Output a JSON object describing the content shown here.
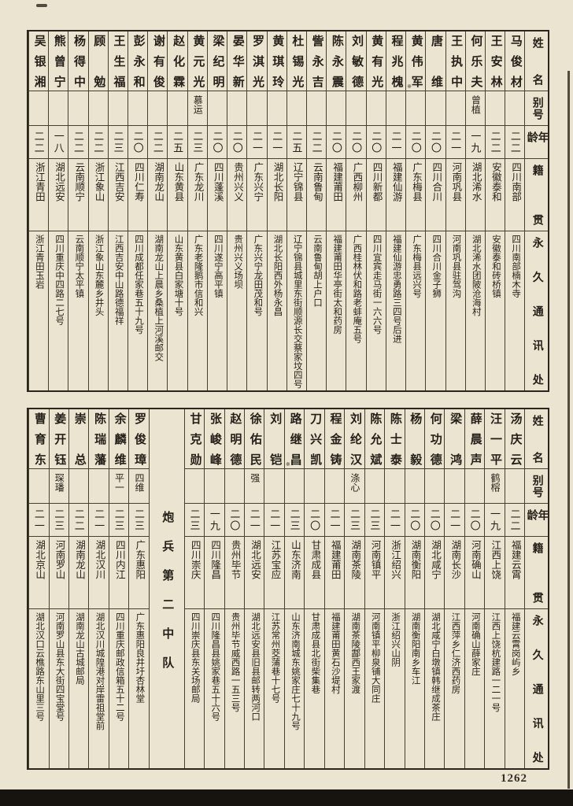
{
  "page": {
    "number": "1262"
  },
  "headers": {
    "name": "姓名",
    "alias": "别号",
    "age": "年龄",
    "native": "籍贯",
    "address": "永久通讯处"
  },
  "table_top": {
    "persons": [
      {
        "name": "马俊材",
        "alias": "",
        "age": "二二",
        "native": "四川南部",
        "address": "四川南部楠木寺"
      },
      {
        "name": "王安林",
        "alias": "",
        "age": "二二",
        "native": "安徽泰和",
        "address": "安徽泰和砖桥镇"
      },
      {
        "name": "何乐夫",
        "alias": "曾植",
        "age": "一九",
        "native": "湖北浠水",
        "address": "湖北浠水团陂沧海村"
      },
      {
        "name": "王执中",
        "alias": "",
        "age": "二一",
        "native": "河南巩县",
        "address": "河南巩县驻驾沟"
      },
      {
        "name": "唐维",
        "alias": "",
        "age": "二〇",
        "native": "四川合川",
        "address": "四川合川金子狮"
      },
      {
        "name": "黄伟军",
        "note": "※",
        "alias": "",
        "age": "二〇",
        "native": "广东梅县",
        "address": "广东梅县远兴号"
      },
      {
        "name": "程兆槐",
        "alias": "",
        "age": "二一",
        "native": "福建仙游",
        "address": "福建仙游忠勇路三四号后进"
      },
      {
        "name": "黄有光",
        "alias": "",
        "age": "二〇",
        "native": "四川新都",
        "address": "四川宜宾走马街一六六号"
      },
      {
        "name": "刘敏德",
        "alias": "",
        "age": "二〇",
        "native": "广西柳州",
        "address": "广西桂林伏和路老蚌庵五号"
      },
      {
        "name": "陈永震",
        "alias": "",
        "age": "二〇",
        "native": "福建莆田",
        "address": "福建莆田华亭街太和药房"
      },
      {
        "name": "訾永吉",
        "alias": "",
        "age": "二二",
        "native": "云南鲁甸",
        "address": "云南鲁甸胡上户口"
      },
      {
        "name": "杜锡光",
        "alias": "",
        "age": "二五",
        "native": "辽宁锦县",
        "address": "辽宁锦县城里东街顺源长交蔡家坟四号"
      },
      {
        "name": "黄琪玲",
        "alias": "",
        "age": "二一",
        "native": "湖北长阳",
        "address": "湖北长阳西外杨永昌"
      },
      {
        "name": "罗淇光",
        "alias": "",
        "age": "二一",
        "native": "广东兴宁",
        "address": "广东兴宁龙田茂和号"
      },
      {
        "name": "晏华新",
        "alias": "",
        "age": "二〇",
        "native": "贵州兴义",
        "address": "贵州兴义场坝"
      },
      {
        "name": "梁纪明",
        "alias": "",
        "age": "二〇",
        "native": "四川蓬溪",
        "address": "四川遂宁高平镇"
      },
      {
        "name": "黄元光",
        "alias": "慕运",
        "age": "二三",
        "native": "广东龙川",
        "address": "广东老隆鹅市信和兴"
      },
      {
        "name": "赵化霖",
        "alias": "",
        "age": "二五",
        "native": "山东黄县",
        "address": "山东黄县白家塘十号"
      },
      {
        "name": "谢有俊",
        "alias": "",
        "age": "二二",
        "native": "湖南龙山",
        "address": "湖南龙山上晨乡桑植上河溪邮交"
      },
      {
        "name": "彭永和",
        "alias": "",
        "age": "二〇",
        "native": "四川仁寿",
        "address": "四川成都任家巷五十九号"
      },
      {
        "name": "王生福",
        "alias": "",
        "age": "二三",
        "native": "江西吉安",
        "address": "江西吉安中山路德福祥"
      },
      {
        "name": "顾勉",
        "alias": "",
        "age": "二二",
        "native": "浙江象山",
        "address": "浙江象山东麓乡井头"
      },
      {
        "name": "杨得中",
        "alias": "",
        "age": "二二",
        "native": "云南顺宁",
        "address": "云南顺宁太平镇"
      },
      {
        "name": "熊曾宁",
        "alias": "",
        "age": "一八",
        "native": "湖北远安",
        "address": "四川重庆中四路二七号"
      },
      {
        "name": "吴银湘",
        "alias": "",
        "age": "二二",
        "native": "浙江青田",
        "address": "浙江青田玉岩"
      }
    ]
  },
  "table_bottom": {
    "divider_label": "炮兵第二中队",
    "divider_before_index": 17,
    "persons": [
      {
        "name": "汤庆云",
        "alias": "",
        "age": "二二",
        "native": "福建云霄",
        "address": "福建云霄岗屿乡"
      },
      {
        "name": "汪一平",
        "alias": "鹤榕",
        "age": "一九",
        "native": "江西上饶",
        "address": "江西上饶杭建路一二一号"
      },
      {
        "name": "薛晨声",
        "alias": "",
        "age": "二〇",
        "native": "河南确山",
        "address": "河南确山薛家庄"
      },
      {
        "name": "梁鸿",
        "alias": "",
        "age": "二一",
        "native": "湖南长沙",
        "address": "江西萍乡仁济西药房"
      },
      {
        "name": "何功德",
        "alias": "",
        "age": "二〇",
        "native": "湖北咸宁",
        "address": "湖北咸宁白墩镇韩继成茶庄"
      },
      {
        "name": "杨毅",
        "alias": "",
        "age": "二〇",
        "native": "湖南衡阳",
        "address": "湖南衡阳南乡车江"
      },
      {
        "name": "陈士泰",
        "alias": "",
        "age": "二一",
        "native": "浙江绍兴",
        "address": "浙江绍兴山阴"
      },
      {
        "name": "陈允斌",
        "alias": "",
        "age": "二三",
        "native": "河南镇平",
        "address": "河南镇平柳泉铺大同庄"
      },
      {
        "name": "刘纶汉",
        "alias": "涤心",
        "age": "二三",
        "native": "湖南茶陵",
        "address": "湖南茶陵酃西王家渡"
      },
      {
        "name": "程金铸",
        "alias": "",
        "age": "二一",
        "native": "福建莆田",
        "address": "福建莆田黄石沙堤村"
      },
      {
        "name": "刀兴凯",
        "alias": "",
        "age": "二〇",
        "native": "甘肃成县",
        "address": "甘肃成县北街柴集巷"
      },
      {
        "name": "路继昌",
        "note": "※",
        "alias": "",
        "age": "二三",
        "native": "山东济南",
        "address": "山东济南城东姚家庄七十九号"
      },
      {
        "name": "刘铠",
        "alias": "",
        "age": "二一",
        "native": "江苏宝应",
        "address": "江苏常州茭蒲巷十七号"
      },
      {
        "name": "徐佑民",
        "alias": "强",
        "age": "二一",
        "native": "湖北远安",
        "address": "湖北远安县旧县邮转两河口"
      },
      {
        "name": "赵明德",
        "alias": "",
        "age": "二〇",
        "native": "贵州毕节",
        "address": "贵州毕节威西路一五三号"
      },
      {
        "name": "张峻峰",
        "alias": "",
        "age": "一九",
        "native": "四川隆昌",
        "address": "四川隆昌县姚家巷五十六号"
      },
      {
        "name": "甘克勋",
        "alias": "",
        "age": "二三",
        "native": "四川崇庆",
        "address": "四川崇庆县东关场邮局"
      },
      {
        "name": "罗俊璋",
        "alias": "四维",
        "age": "二三",
        "native": "广东惠阳",
        "address": "广东惠阳良井圩杏林堂"
      },
      {
        "name": "余麟维",
        "alias": "平一",
        "age": "二三",
        "native": "四川内江",
        "address": "四川重庆邮政信箱五十二号"
      },
      {
        "name": "陈瑞藩",
        "alias": "",
        "age": "二一",
        "native": "湖北汉川",
        "address": "湖北汉川城隍港对岸雷祖堂前"
      },
      {
        "name": "崇总",
        "alias": "",
        "age": "二二",
        "native": "湖南龙山",
        "address": "湖南龙山古城邮局"
      },
      {
        "name": "姜开钰",
        "alias": "琛璠",
        "age": "二三",
        "native": "河南罗山",
        "address": "河南罗山县东大街四宝堂号"
      },
      {
        "name": "曹育东",
        "alias": "",
        "age": "二一",
        "native": "湖北京山",
        "address": "湖北汉口云樵路东山里三号"
      }
    ]
  }
}
